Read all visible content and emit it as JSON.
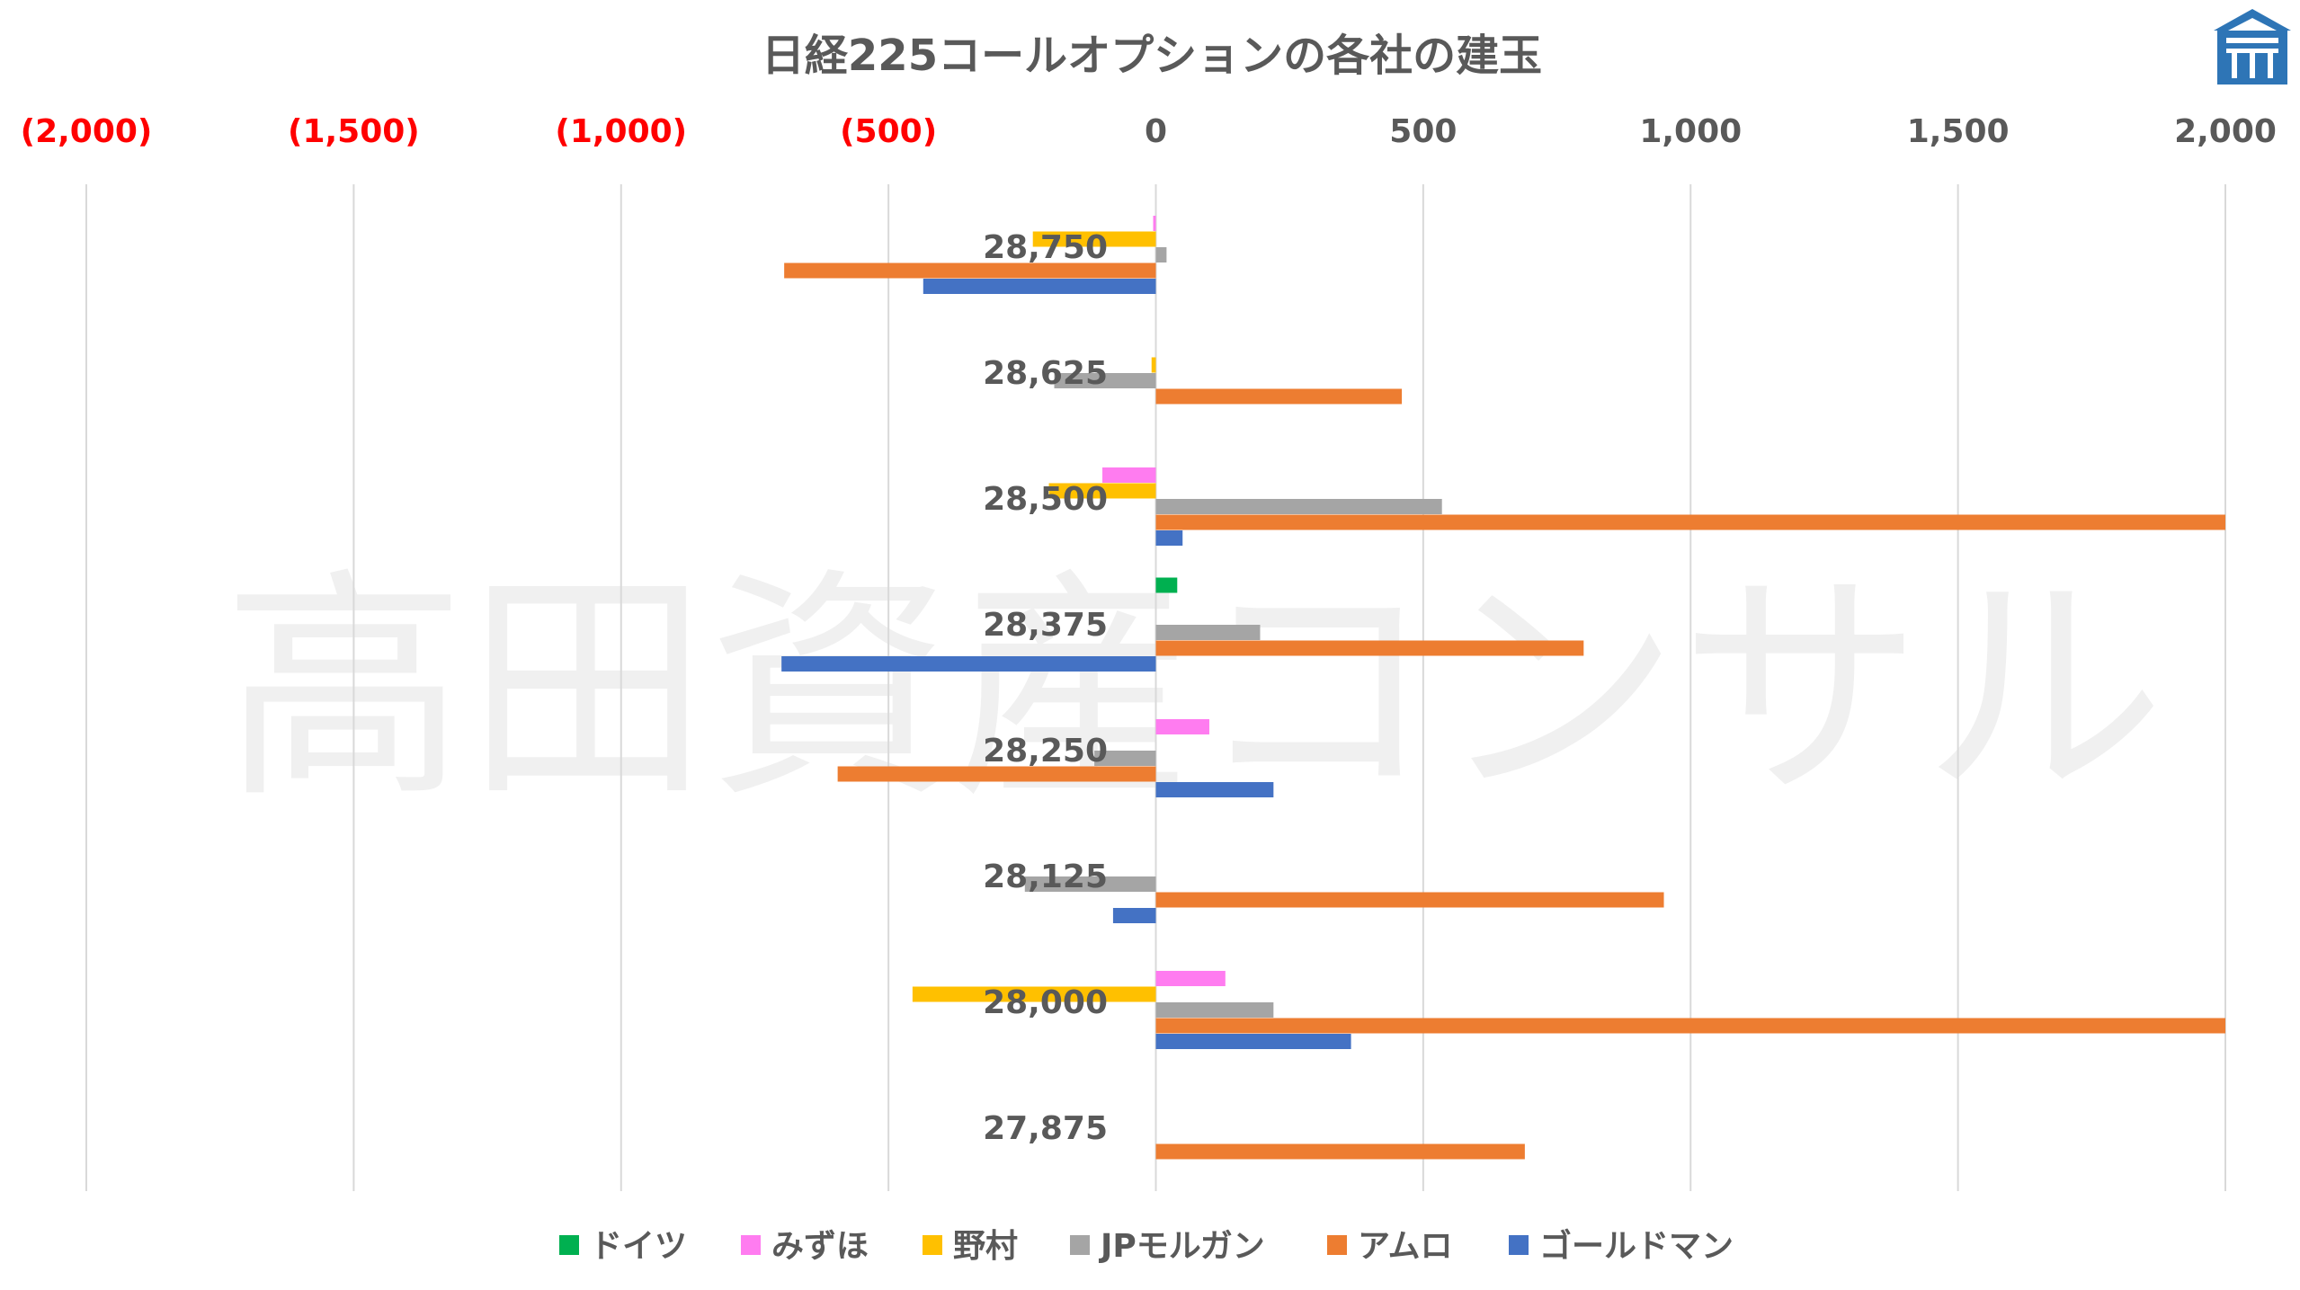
{
  "watermark": "高田資産コンサル",
  "chart_data": {
    "type": "bar",
    "orientation": "horizontal",
    "title": "日経225コールオプションの各社の建玉",
    "xlim": [
      -2000,
      2000
    ],
    "x_ticks": [
      {
        "value": -2000,
        "label": "(2,000)",
        "color": "#ff0000"
      },
      {
        "value": -1500,
        "label": "(1,500)",
        "color": "#ff0000"
      },
      {
        "value": -1000,
        "label": "(1,000)",
        "color": "#ff0000"
      },
      {
        "value": -500,
        "label": "(500)",
        "color": "#ff0000"
      },
      {
        "value": 0,
        "label": "0",
        "color": "#595959"
      },
      {
        "value": 500,
        "label": "500",
        "color": "#595959"
      },
      {
        "value": 1000,
        "label": "1,000",
        "color": "#595959"
      },
      {
        "value": 1500,
        "label": "1,500",
        "color": "#595959"
      },
      {
        "value": 2000,
        "label": "2,000",
        "color": "#595959"
      }
    ],
    "grid": true,
    "legend_position": "bottom",
    "categories": [
      "28,750",
      "28,625",
      "28,500",
      "28,375",
      "28,250",
      "28,125",
      "28,000",
      "27,875"
    ],
    "series": [
      {
        "name": "ドイツ",
        "color": "#00b050",
        "values": [
          0,
          0,
          0,
          40,
          0,
          0,
          0,
          0
        ]
      },
      {
        "name": "みずほ",
        "color": "#ff7cf0",
        "values": [
          -5,
          0,
          -100,
          0,
          100,
          0,
          130,
          0
        ]
      },
      {
        "name": "野村",
        "color": "#ffc000",
        "values": [
          -230,
          -8,
          -200,
          0,
          0,
          0,
          -455,
          0
        ]
      },
      {
        "name": "JPモルガン",
        "color": "#a5a5a5",
        "values": [
          20,
          -190,
          535,
          195,
          -115,
          -245,
          220,
          0
        ]
      },
      {
        "name": "アムロ",
        "color": "#ed7d31",
        "values": [
          -695,
          460,
          2000,
          800,
          -595,
          950,
          2000,
          690
        ]
      },
      {
        "name": "ゴールドマン",
        "color": "#4472c4",
        "values": [
          -435,
          0,
          50,
          -700,
          220,
          -80,
          365,
          0
        ]
      }
    ]
  }
}
